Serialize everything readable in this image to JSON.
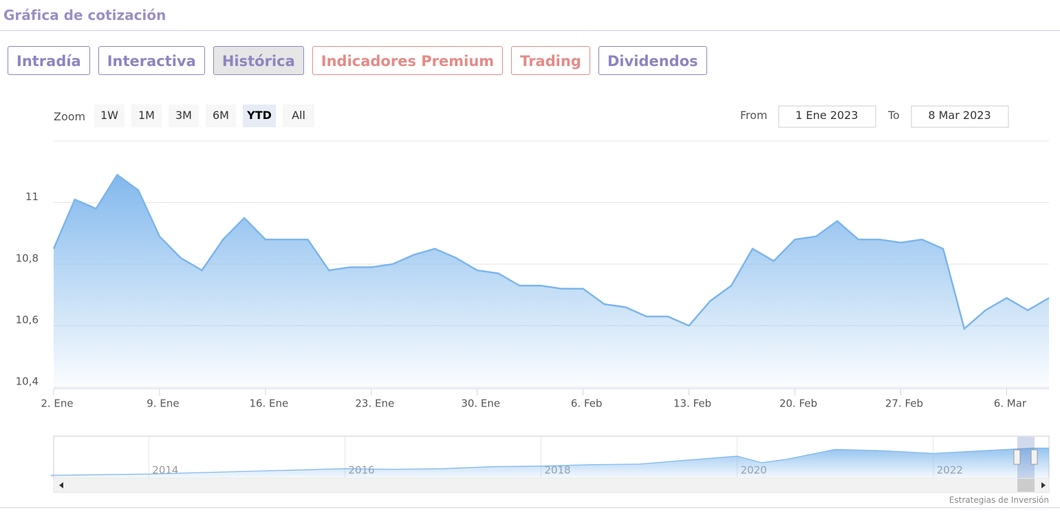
{
  "header": {
    "title": "Gráfica de cotización"
  },
  "tabs": [
    {
      "label": "Intradía",
      "color": "#8f84c0",
      "active": false
    },
    {
      "label": "Interactiva",
      "color": "#8f84c0",
      "active": false
    },
    {
      "label": "Histórica",
      "color": "#8f84c0",
      "active": true
    },
    {
      "label": "Indicadores Premium",
      "color": "#e48b87",
      "active": false
    },
    {
      "label": "Trading",
      "color": "#e48b87",
      "active": false
    },
    {
      "label": "Dividendos",
      "color": "#8f84c0",
      "active": false
    }
  ],
  "range_selector": {
    "zoom_label": "Zoom",
    "buttons": [
      "1W",
      "1M",
      "3M",
      "6M",
      "YTD",
      "All"
    ],
    "selected": 4,
    "from_label": "From",
    "from": "1 Ene 2023",
    "to_label": "To",
    "to": "8 Mar 2023"
  },
  "chart_data": {
    "type": "area",
    "color": "#7cb5ec",
    "categories": [
      "2. Ene",
      null,
      null,
      null,
      null,
      "9. Ene",
      null,
      null,
      null,
      null,
      "16. Ene",
      null,
      null,
      null,
      null,
      "23. Ene",
      null,
      null,
      null,
      null,
      "30. Ene",
      null,
      null,
      null,
      null,
      "6. Feb",
      null,
      null,
      null,
      null,
      "13. Feb",
      null,
      null,
      null,
      null,
      "20. Feb",
      null,
      null,
      null,
      null,
      "27. Feb",
      null,
      null,
      null,
      null,
      "6. Mar",
      null,
      null
    ],
    "values": [
      10.85,
      11.01,
      10.98,
      11.09,
      11.04,
      10.89,
      10.82,
      10.78,
      10.88,
      10.95,
      10.88,
      10.88,
      10.88,
      10.78,
      10.79,
      10.79,
      10.8,
      10.83,
      10.85,
      10.82,
      10.78,
      10.77,
      10.73,
      10.73,
      10.72,
      10.72,
      10.67,
      10.66,
      10.63,
      10.63,
      10.6,
      10.68,
      10.73,
      10.85,
      10.81,
      10.88,
      10.89,
      10.94,
      10.88,
      10.88,
      10.87,
      10.88,
      10.85,
      10.59,
      10.65,
      10.69,
      10.65,
      10.69
    ],
    "ylim": [
      10.4,
      11.2
    ],
    "yticks": [
      {
        "value": 10.4,
        "label": "10,4"
      },
      {
        "value": 10.6,
        "label": "10,6"
      },
      {
        "value": 10.8,
        "label": "10,8"
      },
      11
    ],
    "grid": true
  },
  "navigator": {
    "x": [
      2013,
      2013.5,
      2014,
      2014.5,
      2015,
      2015.5,
      2016,
      2016.5,
      2017,
      2017.5,
      2018,
      2018.5,
      2019,
      2019.5,
      2020,
      2020.25,
      2020.5,
      2021,
      2021.5,
      2022,
      2022.5,
      2023,
      2023.18
    ],
    "values": [
      3,
      4,
      5,
      7,
      9,
      11,
      13,
      12,
      13,
      16,
      17,
      19,
      20,
      26,
      32,
      22,
      27,
      42,
      40,
      36,
      40,
      44,
      44
    ],
    "xlim": [
      2013.03,
      2023.18
    ],
    "ylim": [
      0,
      60
    ],
    "xticks": [
      2014,
      2016,
      2018,
      2020,
      2022
    ]
  },
  "credit": "Estrategias de Inversión"
}
